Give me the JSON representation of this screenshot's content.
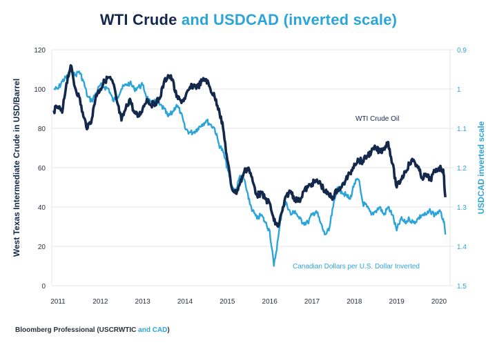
{
  "title": {
    "part1": "WTI Crude",
    "part2": " and USDCAD (inverted scale)"
  },
  "footer": {
    "part1": "Bloomberg Professional (USCRWTIC ",
    "part2": "and CAD",
    "part3": ")"
  },
  "colors": {
    "wti": "#13284b",
    "cad": "#2ba4d9",
    "grid": "#e3e5e8"
  },
  "chart_data": {
    "type": "line",
    "title": "WTI Crude and USDCAD (inverted scale)",
    "xlabel": "",
    "ylabel": "West Texas Intermediate Crude in USD/Barrel",
    "y2label": "USDCAD inverted scale",
    "ylim": [
      0,
      120
    ],
    "y2lim": [
      0.9,
      1.5
    ],
    "y2_inverted": true,
    "grid": true,
    "x_ticks": [
      "2011",
      "2012",
      "2013",
      "2014",
      "2015",
      "2016",
      "2017",
      "2018",
      "2019",
      "2020"
    ],
    "y_ticks": [
      "0",
      "20",
      "40",
      "60",
      "80",
      "100",
      "120"
    ],
    "y2_ticks": [
      "0.9",
      "1",
      "1.1",
      "1.2",
      "1.3",
      "1.4",
      "1.5"
    ],
    "annotations": [
      {
        "text": "WTI Crude Oil",
        "series": "WTI Crude Oil"
      },
      {
        "text": "Canadian Dollars per U.S. Dollar Inverted",
        "series": "USDCAD"
      }
    ],
    "x": [
      2010.9,
      2011.0,
      2011.1,
      2011.2,
      2011.3,
      2011.4,
      2011.5,
      2011.6,
      2011.7,
      2011.8,
      2011.9,
      2012.0,
      2012.1,
      2012.2,
      2012.3,
      2012.4,
      2012.5,
      2012.6,
      2012.7,
      2012.8,
      2012.9,
      2013.0,
      2013.1,
      2013.2,
      2013.3,
      2013.4,
      2013.5,
      2013.6,
      2013.7,
      2013.8,
      2013.9,
      2014.0,
      2014.1,
      2014.2,
      2014.3,
      2014.4,
      2014.5,
      2014.6,
      2014.7,
      2014.8,
      2014.9,
      2015.0,
      2015.1,
      2015.2,
      2015.3,
      2015.4,
      2015.5,
      2015.6,
      2015.7,
      2015.8,
      2015.9,
      2016.0,
      2016.1,
      2016.2,
      2016.3,
      2016.4,
      2016.5,
      2016.6,
      2016.7,
      2016.8,
      2016.9,
      2017.0,
      2017.1,
      2017.2,
      2017.3,
      2017.4,
      2017.5,
      2017.6,
      2017.7,
      2017.8,
      2017.9,
      2018.0,
      2018.1,
      2018.2,
      2018.3,
      2018.4,
      2018.5,
      2018.6,
      2018.7,
      2018.8,
      2018.9,
      2019.0,
      2019.1,
      2019.2,
      2019.3,
      2019.4,
      2019.5,
      2019.6,
      2019.7,
      2019.8,
      2019.9,
      2020.0,
      2020.1,
      2020.15
    ],
    "series": [
      {
        "name": "WTI Crude Oil",
        "axis": "left",
        "values": [
          89,
          91,
          88,
          103,
          112,
          101,
          96,
          86,
          80,
          85,
          97,
          100,
          104,
          106,
          103,
          93,
          84,
          90,
          95,
          88,
          86,
          90,
          95,
          92,
          93,
          95,
          103,
          107,
          105,
          96,
          94,
          95,
          100,
          102,
          101,
          104,
          105,
          100,
          96,
          90,
          80,
          64,
          50,
          47,
          52,
          58,
          60,
          53,
          46,
          47,
          44,
          42,
          33,
          30,
          38,
          46,
          48,
          44,
          43,
          48,
          50,
          52,
          53,
          52,
          48,
          46,
          45,
          49,
          50,
          54,
          57,
          62,
          64,
          63,
          66,
          68,
          70,
          68,
          70,
          73,
          62,
          50,
          54,
          58,
          62,
          64,
          60,
          55,
          56,
          54,
          58,
          60,
          59,
          45
        ]
      },
      {
        "name": "USDCAD",
        "axis": "right",
        "values": [
          1.0,
          1.0,
          0.98,
          0.97,
          0.955,
          0.965,
          0.955,
          0.98,
          1.02,
          1.03,
          1.01,
          0.99,
          0.995,
          1.0,
          1.03,
          1.02,
          1.0,
          0.99,
          0.985,
          1.0,
          0.995,
          0.99,
          1.02,
          1.04,
          1.03,
          1.04,
          1.05,
          1.07,
          1.06,
          1.04,
          1.06,
          1.1,
          1.11,
          1.11,
          1.1,
          1.09,
          1.08,
          1.09,
          1.1,
          1.14,
          1.16,
          1.2,
          1.25,
          1.26,
          1.22,
          1.23,
          1.28,
          1.31,
          1.33,
          1.32,
          1.34,
          1.36,
          1.45,
          1.38,
          1.3,
          1.29,
          1.32,
          1.31,
          1.33,
          1.34,
          1.34,
          1.32,
          1.31,
          1.34,
          1.37,
          1.36,
          1.3,
          1.25,
          1.26,
          1.27,
          1.28,
          1.24,
          1.23,
          1.29,
          1.3,
          1.32,
          1.31,
          1.3,
          1.32,
          1.3,
          1.32,
          1.36,
          1.33,
          1.34,
          1.33,
          1.34,
          1.33,
          1.32,
          1.32,
          1.31,
          1.32,
          1.31,
          1.33,
          1.37
        ]
      }
    ]
  }
}
